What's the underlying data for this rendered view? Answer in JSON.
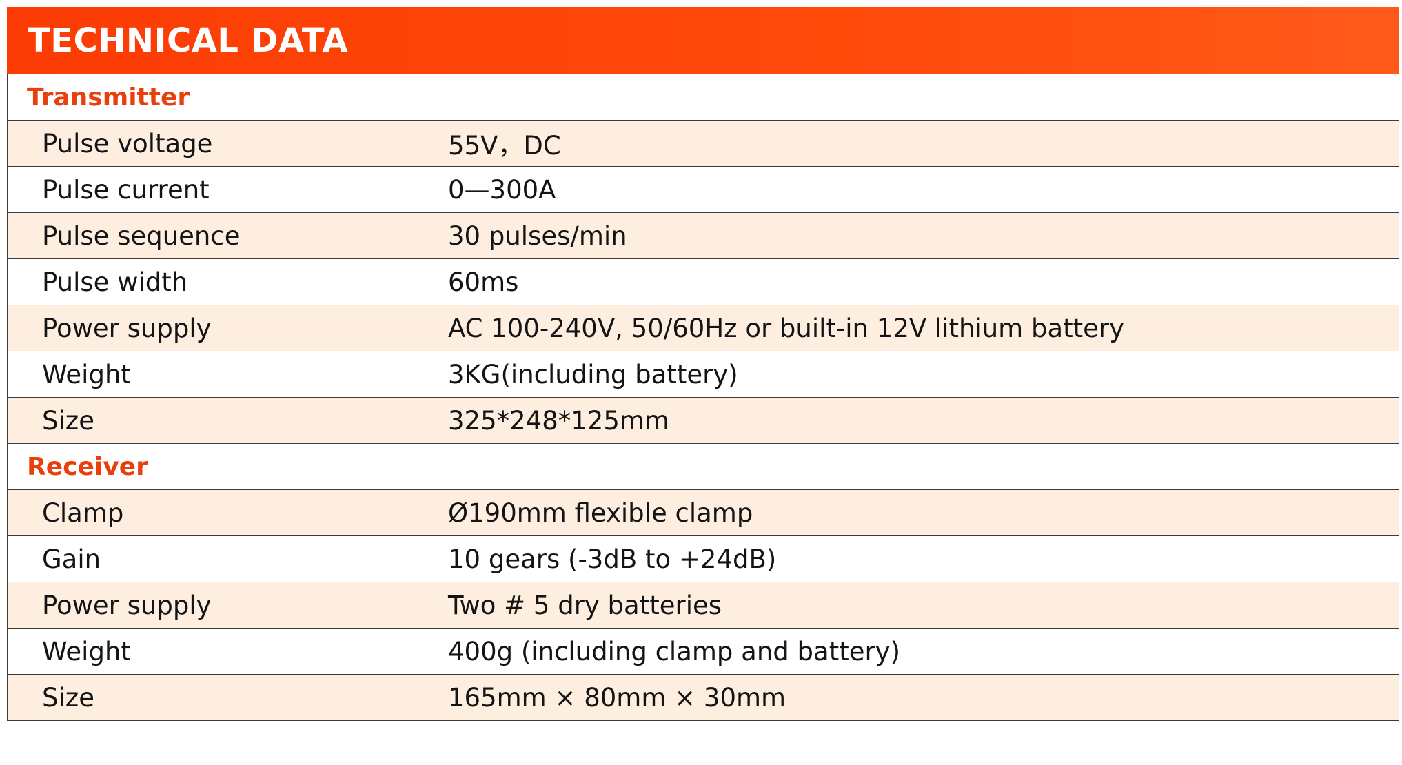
{
  "title": "TECHNICAL DATA",
  "colors": {
    "header": "#ff4a0a",
    "section_text": "#e8400c",
    "stripe": "#fdeee0"
  },
  "sections": [
    {
      "name": "Transmitter",
      "rows": [
        {
          "label": "Pulse voltage",
          "value": "55V，DC"
        },
        {
          "label": "Pulse current",
          "value": "0—300A"
        },
        {
          "label": "Pulse sequence",
          "value": "30 pulses/min"
        },
        {
          "label": "Pulse width",
          "value": "60ms"
        },
        {
          "label": "Power supply",
          "value": "AC 100-240V, 50/60Hz or built-in 12V lithium battery"
        },
        {
          "label": "Weight",
          "value": "3KG(including battery)"
        },
        {
          "label": "Size",
          "value": "325*248*125mm"
        }
      ]
    },
    {
      "name": "Receiver",
      "rows": [
        {
          "label": "Clamp",
          "value": "Ø190mm flexible clamp"
        },
        {
          "label": "Gain",
          "value": "10 gears (-3dB to +24dB)"
        },
        {
          "label": "Power supply",
          "value": "Two # 5 dry batteries"
        },
        {
          "label": "Weight",
          "value": "400g (including clamp and battery)"
        },
        {
          "label": "Size",
          "value": "165mm × 80mm × 30mm"
        }
      ]
    }
  ]
}
